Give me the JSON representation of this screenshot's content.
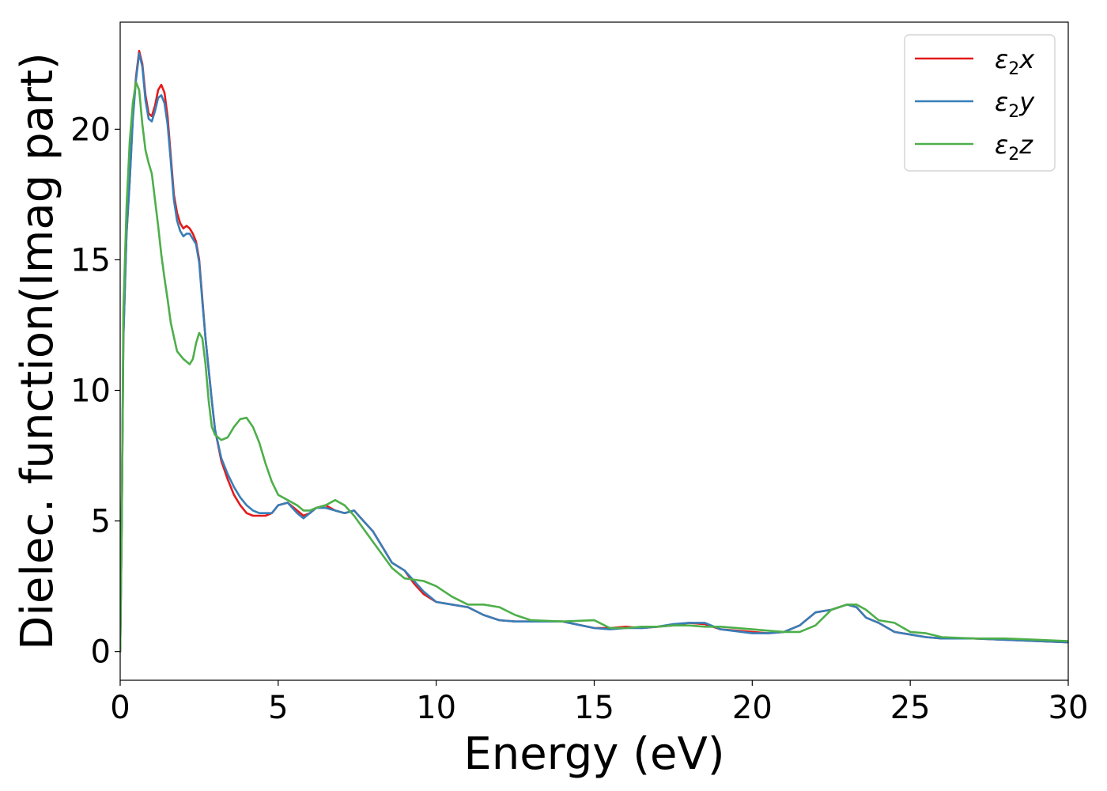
{
  "chart_data": {
    "type": "line",
    "xlabel": "Energy (eV)",
    "ylabel": "Dielec. function(Imag part)",
    "xlim": [
      0,
      30
    ],
    "ylim": [
      -1.1,
      24.1
    ],
    "xticks": [
      0,
      5,
      10,
      15,
      20,
      25,
      30
    ],
    "yticks": [
      0,
      5,
      10,
      15,
      20
    ],
    "grid": false,
    "legend_position": "top-right",
    "series": [
      {
        "name": "ε2x",
        "legend_base": "ε",
        "legend_sub": "2",
        "legend_var": "x",
        "color": "#e41a1c",
        "x": [
          0,
          0.05,
          0.1,
          0.2,
          0.3,
          0.4,
          0.5,
          0.6,
          0.7,
          0.8,
          0.9,
          1.0,
          1.1,
          1.2,
          1.3,
          1.4,
          1.5,
          1.6,
          1.7,
          1.8,
          1.9,
          2.0,
          2.1,
          2.2,
          2.3,
          2.4,
          2.5,
          2.6,
          2.7,
          2.8,
          2.9,
          3.0,
          3.2,
          3.4,
          3.6,
          3.8,
          4.0,
          4.2,
          4.4,
          4.6,
          4.8,
          5.0,
          5.3,
          5.6,
          5.8,
          6.0,
          6.2,
          6.5,
          6.8,
          7.1,
          7.4,
          7.7,
          8.0,
          8.3,
          8.6,
          9.0,
          9.3,
          9.6,
          10.0,
          10.5,
          11.0,
          11.5,
          12.0,
          12.5,
          13.0,
          14.0,
          15.0,
          15.5,
          16.0,
          16.5,
          17.0,
          17.5,
          18.0,
          18.5,
          19.0,
          20.0,
          20.5,
          21.0,
          21.5,
          22.0,
          22.5,
          23.0,
          23.3,
          23.6,
          24.0,
          24.5,
          25.0,
          25.5,
          26.0,
          27.0,
          28.0,
          29.0,
          30.0
        ],
        "y": [
          0,
          5,
          12,
          16,
          18,
          20.5,
          22.0,
          23.0,
          22.5,
          21.3,
          20.6,
          20.5,
          20.9,
          21.5,
          21.7,
          21.4,
          20.5,
          19.0,
          17.5,
          16.8,
          16.4,
          16.2,
          16.3,
          16.2,
          16.0,
          15.7,
          15.0,
          13.5,
          12.0,
          10.8,
          9.6,
          8.5,
          7.3,
          6.6,
          6.0,
          5.6,
          5.3,
          5.2,
          5.2,
          5.2,
          5.3,
          5.6,
          5.7,
          5.4,
          5.2,
          5.3,
          5.5,
          5.6,
          5.4,
          5.3,
          5.4,
          5.0,
          4.6,
          4.0,
          3.4,
          3.1,
          2.6,
          2.2,
          1.9,
          1.8,
          1.7,
          1.4,
          1.2,
          1.15,
          1.15,
          1.15,
          0.9,
          0.9,
          0.95,
          0.9,
          0.95,
          1.0,
          1.1,
          1.05,
          0.85,
          0.75,
          0.7,
          0.75,
          1.0,
          1.5,
          1.6,
          1.8,
          1.7,
          1.3,
          1.1,
          0.75,
          0.65,
          0.55,
          0.5,
          0.5,
          0.45,
          0.4,
          0.35
        ]
      },
      {
        "name": "ε2y",
        "legend_base": "ε",
        "legend_sub": "2",
        "legend_var": "y",
        "color": "#377eb8",
        "x": [
          0,
          0.05,
          0.1,
          0.2,
          0.3,
          0.4,
          0.5,
          0.6,
          0.7,
          0.8,
          0.9,
          1.0,
          1.1,
          1.2,
          1.3,
          1.4,
          1.5,
          1.6,
          1.7,
          1.8,
          1.9,
          2.0,
          2.1,
          2.2,
          2.3,
          2.4,
          2.5,
          2.6,
          2.7,
          2.8,
          2.9,
          3.0,
          3.2,
          3.4,
          3.6,
          3.8,
          4.0,
          4.2,
          4.4,
          4.6,
          4.8,
          5.0,
          5.3,
          5.6,
          5.8,
          6.0,
          6.2,
          6.5,
          6.8,
          7.1,
          7.4,
          7.7,
          8.0,
          8.3,
          8.6,
          9.0,
          9.3,
          9.6,
          10.0,
          10.5,
          11.0,
          11.5,
          12.0,
          12.5,
          13.0,
          14.0,
          15.0,
          15.5,
          16.0,
          16.5,
          17.0,
          17.5,
          18.0,
          18.5,
          19.0,
          20.0,
          20.5,
          21.0,
          21.5,
          22.0,
          22.5,
          23.0,
          23.3,
          23.6,
          24.0,
          24.5,
          25.0,
          25.5,
          26.0,
          27.0,
          28.0,
          29.0,
          30.0
        ],
        "y": [
          0,
          5,
          12,
          16,
          18,
          20.4,
          21.9,
          22.9,
          22.4,
          21.1,
          20.4,
          20.3,
          20.7,
          21.2,
          21.3,
          21.0,
          20.2,
          18.8,
          17.3,
          16.5,
          16.1,
          15.9,
          16.0,
          16.0,
          15.8,
          15.6,
          14.9,
          13.4,
          12.0,
          10.8,
          9.6,
          8.5,
          7.4,
          6.8,
          6.3,
          5.9,
          5.6,
          5.4,
          5.3,
          5.3,
          5.3,
          5.6,
          5.7,
          5.3,
          5.1,
          5.3,
          5.5,
          5.5,
          5.4,
          5.3,
          5.4,
          5.0,
          4.6,
          4.0,
          3.4,
          3.1,
          2.7,
          2.3,
          1.9,
          1.8,
          1.7,
          1.4,
          1.2,
          1.15,
          1.15,
          1.15,
          0.9,
          0.85,
          0.9,
          0.9,
          0.95,
          1.05,
          1.1,
          1.1,
          0.85,
          0.7,
          0.7,
          0.75,
          1.0,
          1.5,
          1.6,
          1.8,
          1.7,
          1.3,
          1.1,
          0.75,
          0.65,
          0.55,
          0.5,
          0.5,
          0.45,
          0.4,
          0.35
        ]
      },
      {
        "name": "ε2z",
        "legend_base": "ε",
        "legend_sub": "2",
        "legend_var": "z",
        "color": "#4daf4a",
        "x": [
          0,
          0.05,
          0.1,
          0.2,
          0.3,
          0.4,
          0.5,
          0.6,
          0.7,
          0.8,
          0.9,
          1.0,
          1.1,
          1.2,
          1.3,
          1.4,
          1.5,
          1.6,
          1.8,
          2.0,
          2.2,
          2.3,
          2.4,
          2.5,
          2.6,
          2.7,
          2.8,
          2.9,
          3.0,
          3.2,
          3.4,
          3.6,
          3.8,
          4.0,
          4.2,
          4.4,
          4.6,
          4.8,
          5.0,
          5.3,
          5.6,
          5.8,
          6.0,
          6.2,
          6.5,
          6.8,
          7.1,
          7.4,
          7.7,
          8.0,
          8.3,
          8.6,
          9.0,
          9.3,
          9.6,
          10.0,
          10.5,
          11.0,
          11.5,
          12.0,
          12.5,
          13.0,
          14.0,
          15.0,
          15.5,
          16.0,
          16.5,
          17.0,
          17.5,
          18.0,
          18.5,
          19.0,
          20.0,
          20.5,
          21.0,
          21.5,
          22.0,
          22.5,
          23.0,
          23.3,
          23.6,
          24.0,
          24.5,
          25.0,
          25.5,
          26.0,
          27.0,
          28.0,
          29.0,
          30.0
        ],
        "y": [
          0,
          5,
          13,
          17,
          19.5,
          21.0,
          21.8,
          21.5,
          20.2,
          19.2,
          18.7,
          18.3,
          17.3,
          16.3,
          15.2,
          14.3,
          13.5,
          12.6,
          11.5,
          11.2,
          11.0,
          11.2,
          11.8,
          12.2,
          12.0,
          11.0,
          9.6,
          8.6,
          8.3,
          8.1,
          8.2,
          8.6,
          8.9,
          8.95,
          8.6,
          8.0,
          7.2,
          6.5,
          6.0,
          5.8,
          5.6,
          5.4,
          5.4,
          5.5,
          5.6,
          5.8,
          5.6,
          5.2,
          4.7,
          4.2,
          3.7,
          3.2,
          2.8,
          2.75,
          2.7,
          2.5,
          2.1,
          1.8,
          1.8,
          1.7,
          1.4,
          1.2,
          1.15,
          1.2,
          0.9,
          0.9,
          0.95,
          0.95,
          1.0,
          1.0,
          0.95,
          0.95,
          0.85,
          0.8,
          0.75,
          0.75,
          1.0,
          1.6,
          1.8,
          1.8,
          1.6,
          1.2,
          1.1,
          0.75,
          0.7,
          0.55,
          0.5,
          0.5,
          0.45,
          0.4
        ]
      }
    ]
  }
}
